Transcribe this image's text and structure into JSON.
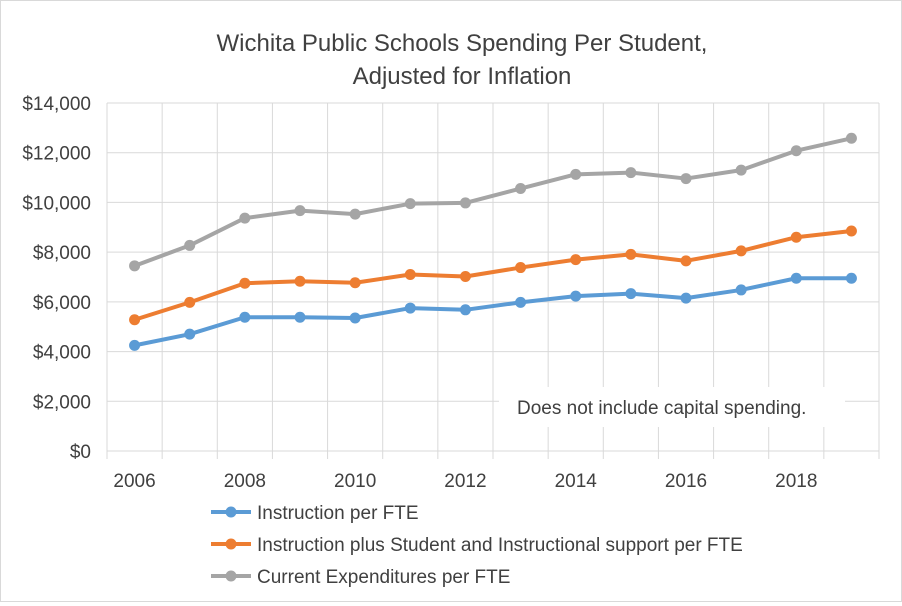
{
  "chart_data": {
    "type": "line",
    "title_lines": [
      "Wichita Public Schools Spending Per Student,",
      "Adjusted for Inflation"
    ],
    "annotation": "Does not include capital spending.",
    "x": [
      2006,
      2007,
      2008,
      2009,
      2010,
      2011,
      2012,
      2013,
      2014,
      2015,
      2016,
      2017,
      2018,
      2019
    ],
    "x_tick_labels": [
      "2006",
      "2008",
      "2010",
      "2012",
      "2014",
      "2016",
      "2018"
    ],
    "ylim": [
      0,
      14000
    ],
    "y_ticks": [
      0,
      2000,
      4000,
      6000,
      8000,
      10000,
      12000,
      14000
    ],
    "y_tick_labels": [
      "$0",
      "$2,000",
      "$4,000",
      "$6,000",
      "$8,000",
      "$10,000",
      "$12,000",
      "$14,000"
    ],
    "grid": true,
    "legend_position": "bottom",
    "series": [
      {
        "name": "Instruction per FTE",
        "color": "#5b9bd5",
        "values": [
          4250,
          4700,
          5380,
          5380,
          5350,
          5750,
          5680,
          5980,
          6230,
          6330,
          6150,
          6480,
          6950,
          6950
        ]
      },
      {
        "name": "Instruction plus Student and Instructional support per FTE",
        "color": "#ed7d31",
        "values": [
          5280,
          5980,
          6750,
          6830,
          6770,
          7100,
          7020,
          7380,
          7700,
          7910,
          7650,
          8050,
          8600,
          8850
        ]
      },
      {
        "name": "Current Expenditures per FTE",
        "color": "#a5a5a5",
        "values": [
          7450,
          8270,
          9370,
          9670,
          9530,
          9950,
          9980,
          10560,
          11130,
          11200,
          10960,
          11300,
          12080,
          12580
        ]
      }
    ]
  }
}
